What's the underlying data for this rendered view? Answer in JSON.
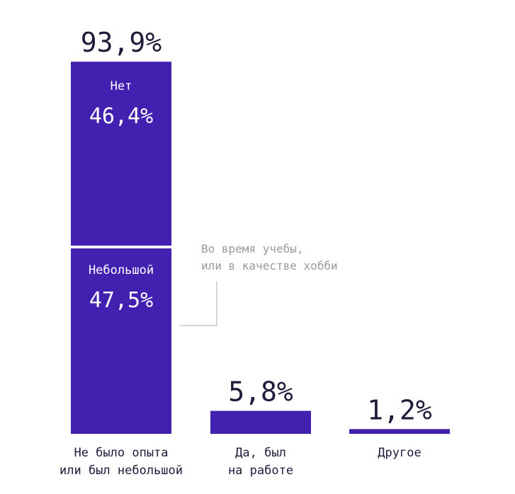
{
  "colors": {
    "bar": "#4221b0",
    "text": "#1d1b3a",
    "annotation": "#9a9a9a",
    "leader": "#c8c8c8"
  },
  "chart_data": {
    "type": "bar",
    "ylim": [
      0,
      100
    ],
    "bars": [
      {
        "category": [
          "Не было опыта",
          "или был небольшой"
        ],
        "total": 93.9,
        "total_label": "93,9%",
        "segments": [
          {
            "name": "Небольшой",
            "value": 47.5,
            "label": "47,5%"
          },
          {
            "name": "Нет",
            "value": 46.4,
            "label": "46,4%"
          }
        ]
      },
      {
        "category": [
          "Да, был",
          "на работе"
        ],
        "total": 5.8,
        "total_label": "5,8%",
        "segments": [
          {
            "name": "",
            "value": 5.8,
            "label": ""
          }
        ]
      },
      {
        "category": [
          "Другое"
        ],
        "total": 1.2,
        "total_label": "1,2%",
        "segments": [
          {
            "name": "",
            "value": 1.2,
            "label": ""
          }
        ]
      }
    ],
    "annotation": {
      "lines": [
        "Во время учебы,",
        "или в качестве хобби"
      ]
    }
  }
}
